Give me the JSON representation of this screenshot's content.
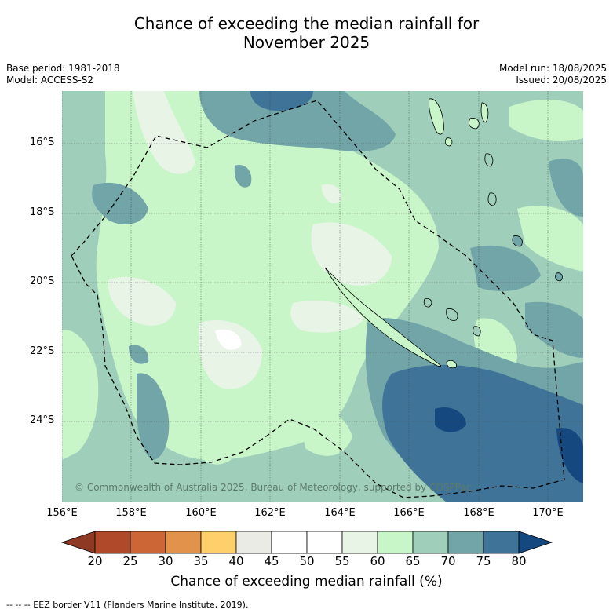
{
  "title_line1": "Chance of exceeding the median rainfall for",
  "title_line2": "November 2025",
  "base_period": "Base period: 1981-2018",
  "model": "Model: ACCESS-S2",
  "model_run": "Model run: 18/08/2025",
  "issued": "Issued: 20/08/2025",
  "lat_labels": [
    "16°S",
    "18°S",
    "20°S",
    "22°S",
    "24°S"
  ],
  "lon_labels": [
    "156°E",
    "158°E",
    "160°E",
    "162°E",
    "164°E",
    "166°E",
    "168°E",
    "170°E"
  ],
  "copyright": "© Commonwealth of Australia 2025, Bureau of Meteorology, supported by COSPPac",
  "colorbar": {
    "ticks": [
      "20",
      "25",
      "30",
      "35",
      "40",
      "45",
      "50",
      "55",
      "60",
      "65",
      "70",
      "75",
      "80"
    ],
    "colors": [
      "#b0492a",
      "#cc6637",
      "#e2934b",
      "#fdd06b",
      "#ebebe6",
      "#ffffff",
      "#ffffff",
      "#e8f4e6",
      "#c8f6c8",
      "#9fcfba",
      "#71a5a8",
      "#3f7498"
    ],
    "low_extend_color": "#8e3924",
    "high_extend_color": "#15487f",
    "label": "Chance of exceeding median rainfall (%)"
  },
  "footnote": "--  --  -- EEZ border V11 (Flanders Marine Institute, 2019)."
}
